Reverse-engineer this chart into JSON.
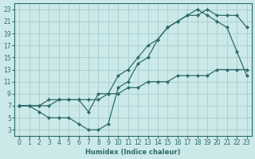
{
  "xlabel": "Humidex (Indice chaleur)",
  "bg_color": "#cce9e9",
  "grid_color": "#aad0d0",
  "line_color": "#2d6b6b",
  "xlim": [
    -0.5,
    23.5
  ],
  "ylim": [
    2.0,
    24.0
  ],
  "xticks": [
    0,
    1,
    2,
    3,
    4,
    5,
    6,
    7,
    8,
    9,
    10,
    11,
    12,
    13,
    14,
    15,
    16,
    17,
    18,
    19,
    20,
    21,
    22,
    23
  ],
  "yticks": [
    3,
    5,
    7,
    9,
    11,
    13,
    15,
    17,
    19,
    21,
    23
  ],
  "line1_x": [
    0,
    1,
    2,
    3,
    4,
    5,
    6,
    7,
    8,
    9,
    10,
    11,
    12,
    13,
    14,
    15,
    16,
    17,
    18,
    19,
    20,
    21,
    22,
    23
  ],
  "line1_y": [
    7,
    7,
    6,
    5,
    5,
    5,
    4,
    3,
    3,
    4,
    10,
    11,
    14,
    15,
    18,
    20,
    21,
    22,
    22,
    23,
    22,
    22,
    22,
    20
  ],
  "line2_x": [
    0,
    1,
    2,
    3,
    4,
    5,
    6,
    7,
    8,
    9,
    10,
    11,
    12,
    13,
    14,
    15,
    16,
    17,
    18,
    19,
    20,
    21,
    22,
    23
  ],
  "line2_y": [
    7,
    7,
    7,
    8,
    8,
    8,
    8,
    6,
    9,
    9,
    12,
    13,
    15,
    17,
    18,
    20,
    21,
    22,
    23,
    22,
    21,
    20,
    16,
    12
  ],
  "line3_x": [
    0,
    1,
    2,
    3,
    4,
    5,
    6,
    7,
    8,
    9,
    10,
    11,
    12,
    13,
    14,
    15,
    16,
    17,
    18,
    19,
    20,
    21,
    22,
    23
  ],
  "line3_y": [
    7,
    7,
    7,
    7,
    8,
    8,
    8,
    8,
    8,
    9,
    9,
    10,
    10,
    11,
    11,
    11,
    12,
    12,
    12,
    12,
    13,
    13,
    13,
    13
  ]
}
